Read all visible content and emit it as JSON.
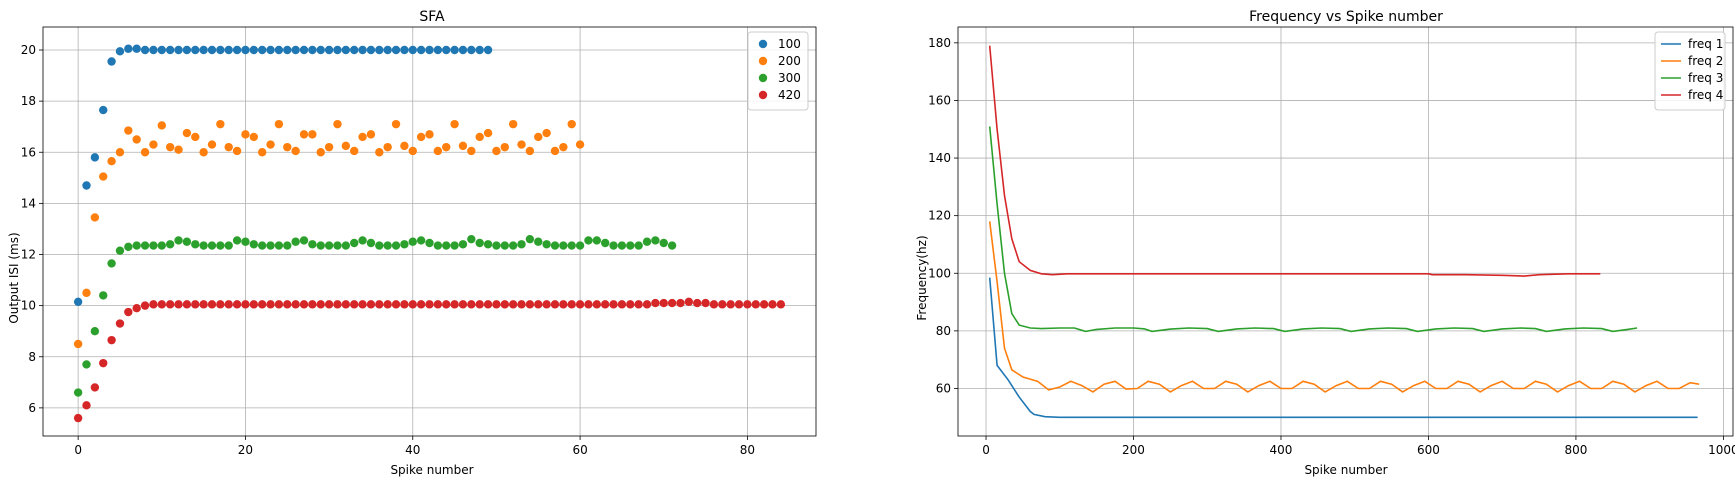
{
  "chart_data": [
    {
      "type": "scatter",
      "title": "SFA",
      "xlabel": "Spike number",
      "ylabel": "Output ISI (ms)",
      "xlim": [
        -4.2,
        88.2
      ],
      "ylim": [
        4.9,
        20.9
      ],
      "xticks": [
        0,
        20,
        40,
        60,
        80
      ],
      "yticks": [
        6,
        8,
        10,
        12,
        14,
        16,
        18,
        20
      ],
      "grid": true,
      "legend": "top-right",
      "series": [
        {
          "name": "100",
          "color": "#1f77b4",
          "values": [
            10.15,
            14.7,
            15.8,
            17.65,
            19.55,
            19.95,
            20.05,
            20.05,
            20.0,
            20.0,
            20.0,
            20.0,
            20.0,
            20.0,
            20.0,
            20.0,
            20.0,
            20.0,
            20.0,
            20.0,
            20.0,
            20.0,
            20.0,
            20.0,
            20.0,
            20.0,
            20.0,
            20.0,
            20.0,
            20.0,
            20.0,
            20.0,
            20.0,
            20.0,
            20.0,
            20.0,
            20.0,
            20.0,
            20.0,
            20.0,
            20.0,
            20.0,
            20.0,
            20.0,
            20.0,
            20.0,
            20.0,
            20.0,
            20.0,
            20.0
          ]
        },
        {
          "name": "200",
          "color": "#ff7f0e",
          "values": [
            8.5,
            10.5,
            13.45,
            15.05,
            15.65,
            16.0,
            16.85,
            16.5,
            16.0,
            16.3,
            17.05,
            16.2,
            16.1,
            16.75,
            16.6,
            16.0,
            16.3,
            17.1,
            16.2,
            16.05,
            16.7,
            16.6,
            16.0,
            16.3,
            17.1,
            16.2,
            16.05,
            16.7,
            16.7,
            16.0,
            16.2,
            17.1,
            16.25,
            16.05,
            16.6,
            16.7,
            16.0,
            16.2,
            17.1,
            16.25,
            16.05,
            16.6,
            16.7,
            16.05,
            16.2,
            17.1,
            16.25,
            16.05,
            16.6,
            16.75,
            16.05,
            16.2,
            17.1,
            16.3,
            16.05,
            16.6,
            16.75,
            16.05,
            16.2,
            17.1,
            16.3
          ]
        },
        {
          "name": "300",
          "color": "#2ca02c",
          "values": [
            6.6,
            7.7,
            9.0,
            10.4,
            11.65,
            12.15,
            12.3,
            12.35,
            12.35,
            12.35,
            12.35,
            12.4,
            12.55,
            12.5,
            12.4,
            12.35,
            12.35,
            12.35,
            12.35,
            12.55,
            12.5,
            12.4,
            12.35,
            12.35,
            12.35,
            12.35,
            12.5,
            12.55,
            12.4,
            12.35,
            12.35,
            12.35,
            12.35,
            12.45,
            12.55,
            12.45,
            12.35,
            12.35,
            12.35,
            12.4,
            12.5,
            12.55,
            12.45,
            12.35,
            12.35,
            12.35,
            12.4,
            12.6,
            12.45,
            12.4,
            12.35,
            12.35,
            12.35,
            12.4,
            12.6,
            12.5,
            12.4,
            12.35,
            12.35,
            12.35,
            12.35,
            12.55,
            12.55,
            12.45,
            12.35,
            12.35,
            12.35,
            12.35,
            12.5,
            12.55,
            12.45,
            12.35
          ]
        },
        {
          "name": "420",
          "color": "#d62728",
          "values": [
            5.6,
            6.1,
            6.8,
            7.75,
            8.65,
            9.3,
            9.75,
            9.9,
            10.0,
            10.05,
            10.05,
            10.05,
            10.05,
            10.05,
            10.05,
            10.05,
            10.05,
            10.05,
            10.05,
            10.05,
            10.05,
            10.05,
            10.05,
            10.05,
            10.05,
            10.05,
            10.05,
            10.05,
            10.05,
            10.05,
            10.05,
            10.05,
            10.05,
            10.05,
            10.05,
            10.05,
            10.05,
            10.05,
            10.05,
            10.05,
            10.05,
            10.05,
            10.05,
            10.05,
            10.05,
            10.05,
            10.05,
            10.05,
            10.05,
            10.05,
            10.05,
            10.05,
            10.05,
            10.05,
            10.05,
            10.05,
            10.05,
            10.05,
            10.05,
            10.05,
            10.05,
            10.05,
            10.05,
            10.05,
            10.05,
            10.05,
            10.05,
            10.05,
            10.05,
            10.1,
            10.1,
            10.1,
            10.1,
            10.15,
            10.1,
            10.1,
            10.05,
            10.05,
            10.05,
            10.05,
            10.05,
            10.05,
            10.05,
            10.05,
            10.05
          ]
        }
      ]
    },
    {
      "type": "line",
      "title": "Frequency vs Spike number",
      "xlabel": "Spike number",
      "ylabel": "Frequency(hz)",
      "xlim": [
        -38,
        1013
      ],
      "ylim": [
        43.5,
        185.5
      ],
      "xticks": [
        0,
        200,
        400,
        600,
        800,
        1000
      ],
      "yticks": [
        60,
        80,
        100,
        120,
        140,
        160,
        180
      ],
      "grid": true,
      "legend": "top-right",
      "series": [
        {
          "name": "freq 1",
          "color": "#1f77b4",
          "points": [
            [
              5,
              98.5
            ],
            [
              15,
              68
            ],
            [
              30,
              63
            ],
            [
              45,
              57
            ],
            [
              60,
              52
            ],
            [
              65,
              51
            ],
            [
              80,
              50.2
            ],
            [
              100,
              50
            ],
            [
              200,
              50
            ],
            [
              400,
              50
            ],
            [
              600,
              50
            ],
            [
              800,
              50
            ],
            [
              965,
              50
            ]
          ]
        },
        {
          "name": "freq 2",
          "color": "#ff7f0e",
          "points": [
            [
              5,
              118
            ],
            [
              15,
              97
            ],
            [
              25,
              74
            ],
            [
              35,
              66.5
            ],
            [
              50,
              64
            ],
            [
              70,
              62.5
            ],
            [
              85,
              59.5
            ],
            [
              100,
              60.5
            ],
            [
              115,
              62.5
            ],
            [
              130,
              61
            ],
            [
              145,
              58.8
            ],
            [
              160,
              61.5
            ],
            [
              175,
              62.5
            ],
            [
              190,
              59.8
            ],
            [
              205,
              60
            ],
            [
              220,
              62.5
            ],
            [
              235,
              61.5
            ],
            [
              250,
              58.8
            ],
            [
              265,
              61
            ],
            [
              280,
              62.5
            ],
            [
              295,
              60
            ],
            [
              310,
              60
            ],
            [
              325,
              62.5
            ],
            [
              340,
              61.5
            ],
            [
              355,
              58.8
            ],
            [
              370,
              61
            ],
            [
              385,
              62.5
            ],
            [
              400,
              60
            ],
            [
              415,
              60
            ],
            [
              430,
              62.5
            ],
            [
              445,
              61.5
            ],
            [
              460,
              58.8
            ],
            [
              475,
              61
            ],
            [
              490,
              62.5
            ],
            [
              505,
              60
            ],
            [
              520,
              60
            ],
            [
              535,
              62.5
            ],
            [
              550,
              61.5
            ],
            [
              565,
              58.8
            ],
            [
              580,
              61
            ],
            [
              595,
              62.5
            ],
            [
              610,
              60
            ],
            [
              625,
              60
            ],
            [
              640,
              62.5
            ],
            [
              655,
              61.5
            ],
            [
              670,
              58.8
            ],
            [
              685,
              61
            ],
            [
              700,
              62.5
            ],
            [
              715,
              60
            ],
            [
              730,
              60
            ],
            [
              745,
              62.5
            ],
            [
              760,
              61.5
            ],
            [
              775,
              58.8
            ],
            [
              790,
              61
            ],
            [
              805,
              62.5
            ],
            [
              820,
              60
            ],
            [
              835,
              60
            ],
            [
              850,
              62.5
            ],
            [
              865,
              61.5
            ],
            [
              880,
              58.8
            ],
            [
              895,
              61
            ],
            [
              910,
              62.5
            ],
            [
              925,
              60
            ],
            [
              940,
              60
            ],
            [
              955,
              62
            ],
            [
              967,
              61.5
            ]
          ]
        },
        {
          "name": "freq 3",
          "color": "#2ca02c",
          "points": [
            [
              5,
              151
            ],
            [
              15,
              124
            ],
            [
              25,
              100
            ],
            [
              35,
              86
            ],
            [
              45,
              82
            ],
            [
              60,
              81
            ],
            [
              75,
              80.8
            ],
            [
              100,
              81
            ],
            [
              120,
              81
            ],
            [
              135,
              79.8
            ],
            [
              150,
              80.5
            ],
            [
              175,
              81
            ],
            [
              200,
              81
            ],
            [
              215,
              80.7
            ],
            [
              225,
              79.8
            ],
            [
              250,
              80.6
            ],
            [
              275,
              81
            ],
            [
              300,
              80.8
            ],
            [
              315,
              79.8
            ],
            [
              340,
              80.7
            ],
            [
              365,
              81
            ],
            [
              390,
              80.8
            ],
            [
              405,
              79.8
            ],
            [
              430,
              80.7
            ],
            [
              455,
              81
            ],
            [
              480,
              80.8
            ],
            [
              495,
              79.8
            ],
            [
              520,
              80.7
            ],
            [
              545,
              81
            ],
            [
              570,
              80.8
            ],
            [
              585,
              79.8
            ],
            [
              610,
              80.7
            ],
            [
              635,
              81
            ],
            [
              660,
              80.8
            ],
            [
              675,
              79.8
            ],
            [
              700,
              80.7
            ],
            [
              725,
              81
            ],
            [
              745,
              80.8
            ],
            [
              760,
              79.8
            ],
            [
              785,
              80.7
            ],
            [
              810,
              81
            ],
            [
              835,
              80.8
            ],
            [
              850,
              79.8
            ],
            [
              870,
              80.5
            ],
            [
              883,
              81
            ]
          ]
        },
        {
          "name": "freq 4",
          "color": "#d62728",
          "points": [
            [
              5,
              179
            ],
            [
              15,
              150
            ],
            [
              25,
              127
            ],
            [
              35,
              112
            ],
            [
              45,
              104
            ],
            [
              60,
              101
            ],
            [
              75,
              99.8
            ],
            [
              90,
              99.5
            ],
            [
              110,
              99.8
            ],
            [
              200,
              99.8
            ],
            [
              400,
              99.8
            ],
            [
              600,
              99.8
            ],
            [
              605,
              99.5
            ],
            [
              650,
              99.5
            ],
            [
              700,
              99.3
            ],
            [
              730,
              99
            ],
            [
              750,
              99.5
            ],
            [
              790,
              99.8
            ],
            [
              833,
              99.8
            ]
          ]
        }
      ]
    }
  ]
}
